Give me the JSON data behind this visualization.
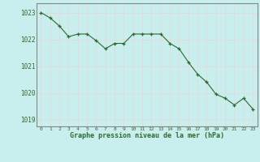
{
  "x": [
    0,
    1,
    2,
    3,
    4,
    5,
    6,
    7,
    8,
    9,
    10,
    11,
    12,
    13,
    14,
    15,
    16,
    17,
    18,
    19,
    20,
    21,
    22,
    23
  ],
  "y": [
    1023.0,
    1022.8,
    1022.5,
    1022.1,
    1022.2,
    1022.2,
    1021.95,
    1021.65,
    1021.85,
    1021.85,
    1022.2,
    1022.2,
    1022.2,
    1022.2,
    1021.85,
    1021.65,
    1021.15,
    1020.7,
    1020.4,
    1019.95,
    1019.8,
    1019.55,
    1019.8,
    1019.4
  ],
  "line_color": "#2d6a2d",
  "marker_color": "#2d6a2d",
  "bg_color": "#c8eeee",
  "grid_color": "#e8d8d8",
  "border_color": "#888888",
  "xlabel": "Graphe pression niveau de la mer (hPa)",
  "xlabel_color": "#2d6a2d",
  "tick_color": "#2d6a2d",
  "ylim_min": 1018.75,
  "ylim_max": 1023.35,
  "yticks": [
    1019,
    1020,
    1021,
    1022,
    1023
  ],
  "xticks": [
    0,
    1,
    2,
    3,
    4,
    5,
    6,
    7,
    8,
    9,
    10,
    11,
    12,
    13,
    14,
    15,
    16,
    17,
    18,
    19,
    20,
    21,
    22,
    23
  ],
  "figsize": [
    3.2,
    2.0
  ],
  "dpi": 100
}
